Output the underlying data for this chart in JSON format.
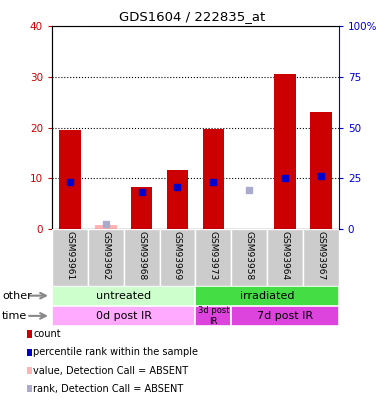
{
  "title": "GDS1604 / 222835_at",
  "samples": [
    "GSM93961",
    "GSM93962",
    "GSM93968",
    "GSM93969",
    "GSM93973",
    "GSM93958",
    "GSM93964",
    "GSM93967"
  ],
  "bar_values": [
    19.5,
    0.8,
    8.3,
    11.7,
    19.8,
    0,
    30.5,
    23.0
  ],
  "bar_absent": [
    false,
    true,
    false,
    false,
    false,
    true,
    false,
    false
  ],
  "rank_values": [
    23.0,
    null,
    18.0,
    20.5,
    23.0,
    null,
    25.0,
    26.0
  ],
  "rank_absent_values": [
    null,
    2.5,
    null,
    null,
    null,
    19.0,
    null,
    null
  ],
  "bar_color_present": "#cc0000",
  "bar_color_absent": "#ffb3b3",
  "rank_color_present": "#0000cc",
  "rank_color_absent": "#aaaacc",
  "ylim_left": [
    0,
    40
  ],
  "ylim_right": [
    0,
    100
  ],
  "ylabel_left_color": "#cc0000",
  "ylabel_right_color": "#0000cc",
  "yticks_left": [
    0,
    10,
    20,
    30,
    40
  ],
  "yticks_right": [
    0,
    25,
    50,
    75,
    100
  ],
  "ytick_labels_right": [
    "0",
    "25",
    "50",
    "75",
    "100%"
  ],
  "group_other": [
    {
      "label": "untreated",
      "start": 0,
      "end": 4,
      "color": "#ccffcc"
    },
    {
      "label": "irradiated",
      "start": 4,
      "end": 8,
      "color": "#44dd44"
    }
  ],
  "group_time": [
    {
      "label": "0d post IR",
      "start": 0,
      "end": 4,
      "color": "#ffaaff"
    },
    {
      "label": "3d post\nIR",
      "start": 4,
      "end": 5,
      "color": "#dd44dd"
    },
    {
      "label": "7d post IR",
      "start": 5,
      "end": 8,
      "color": "#dd44dd"
    }
  ],
  "legend_items": [
    {
      "label": "count",
      "color": "#cc0000"
    },
    {
      "label": "percentile rank within the sample",
      "color": "#0000cc"
    },
    {
      "label": "value, Detection Call = ABSENT",
      "color": "#ffb3b3"
    },
    {
      "label": "rank, Detection Call = ABSENT",
      "color": "#aaaacc"
    }
  ],
  "sample_bg_color": "#cccccc",
  "plot_border_color": "#000000"
}
